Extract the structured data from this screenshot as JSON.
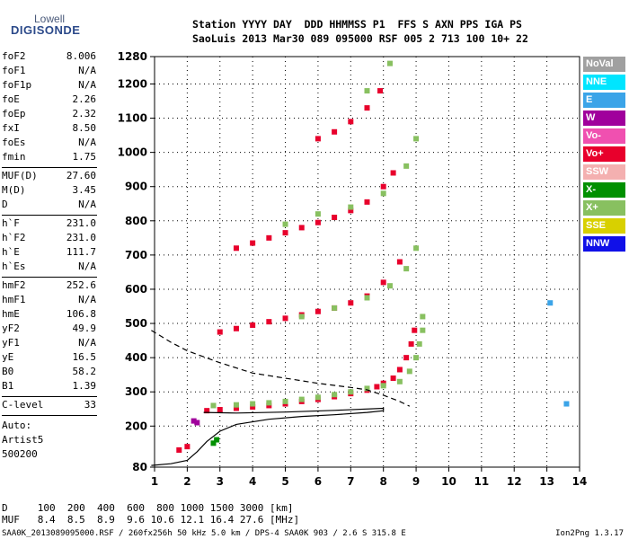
{
  "logo": {
    "top": "Lowell",
    "bottom": "DIGISONDE"
  },
  "header": {
    "line1": "Station YYYY DAY  DDD HHMMSS P1  FFS S AXN PPS IGA PS",
    "line2": "SaoLuis 2013 Mar30 089 095000 RSF 005 2 713 100 10+ 22"
  },
  "params_group1": [
    {
      "k": "foF2",
      "v": "8.006"
    },
    {
      "k": "foF1",
      "v": "N/A"
    },
    {
      "k": "foF1p",
      "v": "N/A"
    },
    {
      "k": "foE",
      "v": "2.26"
    },
    {
      "k": "foEp",
      "v": "2.32"
    },
    {
      "k": "fxI",
      "v": "8.50"
    },
    {
      "k": "foEs",
      "v": "N/A"
    },
    {
      "k": "fmin",
      "v": "1.75"
    }
  ],
  "params_group2": [
    {
      "k": "MUF(D)",
      "v": "27.60"
    },
    {
      "k": "M(D)",
      "v": "3.45"
    },
    {
      "k": "D",
      "v": "N/A"
    }
  ],
  "params_group3": [
    {
      "k": "h`F",
      "v": "231.0"
    },
    {
      "k": "h`F2",
      "v": "231.0"
    },
    {
      "k": "h`E",
      "v": "111.7"
    },
    {
      "k": "h`Es",
      "v": "N/A"
    }
  ],
  "params_group4": [
    {
      "k": "hmF2",
      "v": "252.6"
    },
    {
      "k": "hmF1",
      "v": "N/A"
    },
    {
      "k": "hmE",
      "v": "106.8"
    },
    {
      "k": "yF2",
      "v": "49.9"
    },
    {
      "k": "yF1",
      "v": "N/A"
    },
    {
      "k": "yE",
      "v": "16.5"
    },
    {
      "k": "B0",
      "v": "58.2"
    },
    {
      "k": "B1",
      "v": "1.39"
    }
  ],
  "clevel": {
    "k": "C-level",
    "v": "33"
  },
  "auto": {
    "l1": "Auto:",
    "l2": "Artist5",
    "l3": "500200"
  },
  "legend": [
    {
      "label": "NoVal",
      "color": "#a0a0a0"
    },
    {
      "label": "NNE",
      "color": "#00e5ff"
    },
    {
      "label": "E",
      "color": "#3ba4e8"
    },
    {
      "label": "W",
      "color": "#a0009c"
    },
    {
      "label": "Vo-",
      "color": "#f050b0"
    },
    {
      "label": "Vo+",
      "color": "#e8002c"
    },
    {
      "label": "SSW",
      "color": "#f4b0b0"
    },
    {
      "label": "X-",
      "color": "#009000"
    },
    {
      "label": "X+",
      "color": "#88c060"
    },
    {
      "label": "SSE",
      "color": "#d8d000"
    },
    {
      "label": "NNW",
      "color": "#1010e8"
    }
  ],
  "muf_table": {
    "d_row": "D     100  200  400  600  800 1000 1500 3000 [km]",
    "muf_row": "MUF   8.4  8.5  8.9  9.6 10.6 12.1 16.4 27.6 [MHz]"
  },
  "footer": {
    "left": "SAA0K_2013089095000.RSF / 260fx256h 50 kHz 5.0 km / DPS-4 SAA0K 903 / 2.6 S 315.8 E",
    "right": "Ion2Png 1.3.17"
  },
  "chart_data": {
    "type": "scatter",
    "title": "",
    "xlabel": "",
    "ylabel": "",
    "xlim": [
      1,
      14
    ],
    "ylim": [
      80,
      1280
    ],
    "x_ticks": [
      1,
      2,
      3,
      4,
      5,
      6,
      7,
      8,
      9,
      10,
      11,
      12,
      13,
      14
    ],
    "y_ticks": [
      80,
      200,
      300,
      400,
      500,
      600,
      700,
      800,
      900,
      1000,
      1100,
      1200,
      1280
    ],
    "grid": true,
    "legend_placement": "right",
    "series": [
      {
        "name": "Vo+",
        "color": "#e8002c",
        "points": [
          [
            1.75,
            130
          ],
          [
            2.0,
            140
          ],
          [
            2.6,
            245
          ],
          [
            3.0,
            248
          ],
          [
            3.5,
            252
          ],
          [
            4.0,
            256
          ],
          [
            4.5,
            260
          ],
          [
            5.0,
            265
          ],
          [
            5.5,
            272
          ],
          [
            6.0,
            278
          ],
          [
            6.5,
            286
          ],
          [
            7.0,
            295
          ],
          [
            7.5,
            305
          ],
          [
            7.8,
            315
          ],
          [
            8.0,
            325
          ],
          [
            8.3,
            340
          ],
          [
            8.5,
            365
          ],
          [
            8.7,
            400
          ],
          [
            8.85,
            440
          ],
          [
            8.95,
            480
          ],
          [
            3.0,
            475
          ],
          [
            3.5,
            485
          ],
          [
            4.0,
            495
          ],
          [
            4.5,
            505
          ],
          [
            5.0,
            515
          ],
          [
            5.5,
            525
          ],
          [
            6.0,
            535
          ],
          [
            6.5,
            545
          ],
          [
            7.0,
            560
          ],
          [
            7.5,
            580
          ],
          [
            8.0,
            620
          ],
          [
            8.5,
            680
          ],
          [
            3.5,
            720
          ],
          [
            4.0,
            735
          ],
          [
            4.5,
            750
          ],
          [
            5.0,
            765
          ],
          [
            5.5,
            780
          ],
          [
            6.0,
            795
          ],
          [
            6.5,
            810
          ],
          [
            7.0,
            830
          ],
          [
            7.5,
            855
          ],
          [
            8.0,
            900
          ],
          [
            8.3,
            940
          ],
          [
            6.0,
            1040
          ],
          [
            6.5,
            1060
          ],
          [
            7.0,
            1090
          ],
          [
            7.5,
            1130
          ],
          [
            7.9,
            1180
          ]
        ]
      },
      {
        "name": "X+",
        "color": "#88c060",
        "points": [
          [
            2.8,
            260
          ],
          [
            3.5,
            262
          ],
          [
            4.0,
            265
          ],
          [
            4.5,
            268
          ],
          [
            5.0,
            272
          ],
          [
            5.5,
            278
          ],
          [
            6.0,
            284
          ],
          [
            6.5,
            292
          ],
          [
            7.0,
            300
          ],
          [
            7.5,
            310
          ],
          [
            8.0,
            318
          ],
          [
            8.5,
            330
          ],
          [
            8.8,
            360
          ],
          [
            9.0,
            400
          ],
          [
            9.1,
            440
          ],
          [
            9.2,
            480
          ],
          [
            9.2,
            520
          ],
          [
            5.5,
            520
          ],
          [
            6.5,
            545
          ],
          [
            7.5,
            575
          ],
          [
            8.2,
            610
          ],
          [
            8.7,
            660
          ],
          [
            9.0,
            720
          ],
          [
            5.0,
            790
          ],
          [
            6.0,
            820
          ],
          [
            7.0,
            840
          ],
          [
            8.0,
            880
          ],
          [
            8.7,
            960
          ],
          [
            9.0,
            1040
          ],
          [
            7.5,
            1180
          ],
          [
            8.2,
            1260
          ]
        ]
      },
      {
        "name": "X-",
        "color": "#009000",
        "points": [
          [
            2.8,
            150
          ],
          [
            2.9,
            160
          ]
        ]
      },
      {
        "name": "W",
        "color": "#a0009c",
        "points": [
          [
            2.2,
            215
          ],
          [
            2.3,
            210
          ]
        ]
      },
      {
        "name": "E",
        "color": "#3ba4e8",
        "points": [
          [
            13.1,
            560
          ],
          [
            13.6,
            265
          ]
        ]
      }
    ],
    "profile_solid": [
      [
        0.9,
        85
      ],
      [
        1.5,
        90
      ],
      [
        2.0,
        100
      ],
      [
        2.3,
        125
      ],
      [
        2.6,
        155
      ],
      [
        3.0,
        185
      ],
      [
        3.5,
        205
      ],
      [
        4.5,
        220
      ],
      [
        5.5,
        228
      ],
      [
        6.5,
        233
      ],
      [
        7.5,
        240
      ],
      [
        8.0,
        245
      ],
      [
        8.0,
        252
      ],
      [
        6.5,
        246
      ],
      [
        5.0,
        241
      ],
      [
        3.5,
        238
      ],
      [
        2.5,
        240
      ]
    ],
    "profile_dashed": [
      [
        0.9,
        480
      ],
      [
        1.5,
        445
      ],
      [
        2.0,
        420
      ],
      [
        3.0,
        385
      ],
      [
        4.0,
        355
      ],
      [
        5.0,
        340
      ],
      [
        6.0,
        325
      ],
      [
        7.0,
        313
      ],
      [
        7.5,
        306
      ],
      [
        8.0,
        290
      ],
      [
        8.5,
        272
      ],
      [
        8.8,
        258
      ]
    ]
  }
}
